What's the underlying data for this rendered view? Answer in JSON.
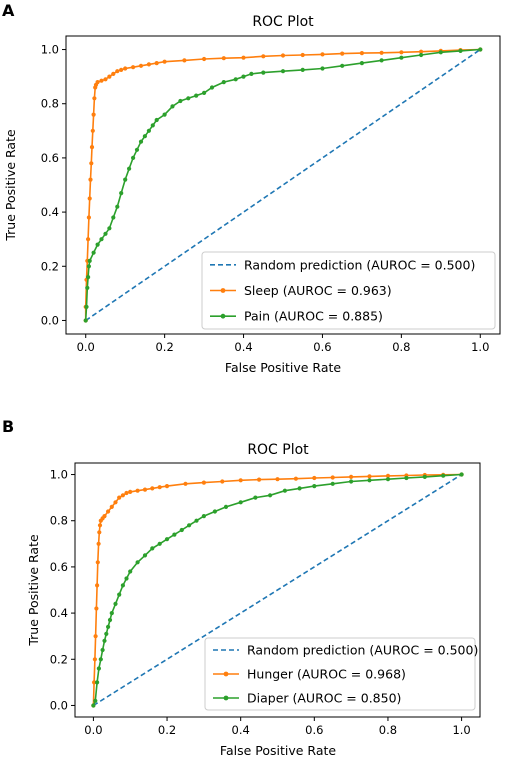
{
  "chart_data": [
    {
      "panel_label": "A",
      "type": "line",
      "title": "ROC Plot",
      "xlabel": "False Positive Rate",
      "ylabel": "True Positive Rate",
      "xlim": [
        -0.05,
        1.05
      ],
      "ylim": [
        -0.05,
        1.05
      ],
      "xticks": [
        "0.0",
        "0.2",
        "0.4",
        "0.6",
        "0.8",
        "1.0"
      ],
      "yticks": [
        "0.0",
        "0.2",
        "0.4",
        "0.6",
        "0.8",
        "1.0"
      ],
      "grid": false,
      "legend_position": "lower-right",
      "series": [
        {
          "name": "Random prediction (AUROC = 0.500)",
          "color": "#1f77b4",
          "style": "dashed",
          "markers": false,
          "points": [
            [
              0,
              0
            ],
            [
              1,
              1
            ]
          ]
        },
        {
          "name": "Sleep (AUROC = 0.963)",
          "color": "#ff7f0e",
          "style": "solid",
          "markers": true,
          "points": [
            [
              0,
              0
            ],
            [
              0,
              0.05
            ],
            [
              0.002,
              0.15
            ],
            [
              0.004,
              0.22
            ],
            [
              0.006,
              0.3
            ],
            [
              0.008,
              0.38
            ],
            [
              0.01,
              0.45
            ],
            [
              0.012,
              0.52
            ],
            [
              0.014,
              0.58
            ],
            [
              0.016,
              0.64
            ],
            [
              0.018,
              0.7
            ],
            [
              0.02,
              0.76
            ],
            [
              0.022,
              0.82
            ],
            [
              0.024,
              0.86
            ],
            [
              0.026,
              0.87
            ],
            [
              0.03,
              0.88
            ],
            [
              0.04,
              0.885
            ],
            [
              0.05,
              0.89
            ],
            [
              0.06,
              0.9
            ],
            [
              0.07,
              0.91
            ],
            [
              0.08,
              0.92
            ],
            [
              0.09,
              0.925
            ],
            [
              0.1,
              0.93
            ],
            [
              0.12,
              0.935
            ],
            [
              0.14,
              0.94
            ],
            [
              0.16,
              0.945
            ],
            [
              0.18,
              0.95
            ],
            [
              0.2,
              0.955
            ],
            [
              0.25,
              0.96
            ],
            [
              0.3,
              0.965
            ],
            [
              0.35,
              0.968
            ],
            [
              0.4,
              0.97
            ],
            [
              0.45,
              0.975
            ],
            [
              0.5,
              0.978
            ],
            [
              0.55,
              0.98
            ],
            [
              0.6,
              0.982
            ],
            [
              0.65,
              0.985
            ],
            [
              0.7,
              0.987
            ],
            [
              0.75,
              0.988
            ],
            [
              0.8,
              0.99
            ],
            [
              0.85,
              0.992
            ],
            [
              0.9,
              0.995
            ],
            [
              0.95,
              0.998
            ],
            [
              1.0,
              1.0
            ]
          ]
        },
        {
          "name": "Pain (AUROC = 0.885)",
          "color": "#2ca02c",
          "style": "solid",
          "markers": true,
          "points": [
            [
              0,
              0
            ],
            [
              0.002,
              0.05
            ],
            [
              0.004,
              0.12
            ],
            [
              0.006,
              0.16
            ],
            [
              0.008,
              0.2
            ],
            [
              0.01,
              0.22
            ],
            [
              0.02,
              0.25
            ],
            [
              0.03,
              0.28
            ],
            [
              0.04,
              0.3
            ],
            [
              0.05,
              0.32
            ],
            [
              0.06,
              0.34
            ],
            [
              0.07,
              0.38
            ],
            [
              0.08,
              0.42
            ],
            [
              0.09,
              0.47
            ],
            [
              0.1,
              0.52
            ],
            [
              0.11,
              0.56
            ],
            [
              0.12,
              0.6
            ],
            [
              0.13,
              0.63
            ],
            [
              0.14,
              0.66
            ],
            [
              0.15,
              0.68
            ],
            [
              0.16,
              0.7
            ],
            [
              0.17,
              0.72
            ],
            [
              0.18,
              0.74
            ],
            [
              0.2,
              0.76
            ],
            [
              0.22,
              0.79
            ],
            [
              0.24,
              0.81
            ],
            [
              0.26,
              0.82
            ],
            [
              0.28,
              0.83
            ],
            [
              0.3,
              0.84
            ],
            [
              0.32,
              0.86
            ],
            [
              0.35,
              0.88
            ],
            [
              0.38,
              0.89
            ],
            [
              0.4,
              0.9
            ],
            [
              0.42,
              0.91
            ],
            [
              0.45,
              0.915
            ],
            [
              0.5,
              0.92
            ],
            [
              0.55,
              0.925
            ],
            [
              0.6,
              0.93
            ],
            [
              0.65,
              0.94
            ],
            [
              0.7,
              0.95
            ],
            [
              0.75,
              0.96
            ],
            [
              0.8,
              0.97
            ],
            [
              0.85,
              0.98
            ],
            [
              0.9,
              0.99
            ],
            [
              0.95,
              0.995
            ],
            [
              1.0,
              1.0
            ]
          ]
        }
      ]
    },
    {
      "panel_label": "B",
      "type": "line",
      "title": "ROC Plot",
      "xlabel": "False Positive Rate",
      "ylabel": "True Positive Rate",
      "xlim": [
        -0.05,
        1.05
      ],
      "ylim": [
        -0.05,
        1.05
      ],
      "xticks": [
        "0.0",
        "0.2",
        "0.4",
        "0.6",
        "0.8",
        "1.0"
      ],
      "yticks": [
        "0.0",
        "0.2",
        "0.4",
        "0.6",
        "0.8",
        "1.0"
      ],
      "grid": false,
      "legend_position": "lower-right",
      "series": [
        {
          "name": "Random prediction (AUROC = 0.500)",
          "color": "#1f77b4",
          "style": "dashed",
          "markers": false,
          "points": [
            [
              0,
              0
            ],
            [
              1,
              1
            ]
          ]
        },
        {
          "name": "Hunger (AUROC = 0.968)",
          "color": "#ff7f0e",
          "style": "solid",
          "markers": true,
          "points": [
            [
              0,
              0
            ],
            [
              0.002,
              0.1
            ],
            [
              0.004,
              0.2
            ],
            [
              0.006,
              0.3
            ],
            [
              0.008,
              0.42
            ],
            [
              0.01,
              0.52
            ],
            [
              0.012,
              0.62
            ],
            [
              0.014,
              0.7
            ],
            [
              0.016,
              0.75
            ],
            [
              0.018,
              0.78
            ],
            [
              0.02,
              0.8
            ],
            [
              0.025,
              0.81
            ],
            [
              0.03,
              0.82
            ],
            [
              0.04,
              0.84
            ],
            [
              0.05,
              0.86
            ],
            [
              0.06,
              0.88
            ],
            [
              0.07,
              0.9
            ],
            [
              0.08,
              0.91
            ],
            [
              0.09,
              0.92
            ],
            [
              0.1,
              0.925
            ],
            [
              0.12,
              0.93
            ],
            [
              0.14,
              0.935
            ],
            [
              0.16,
              0.94
            ],
            [
              0.18,
              0.945
            ],
            [
              0.2,
              0.95
            ],
            [
              0.25,
              0.96
            ],
            [
              0.3,
              0.965
            ],
            [
              0.35,
              0.97
            ],
            [
              0.4,
              0.975
            ],
            [
              0.45,
              0.978
            ],
            [
              0.5,
              0.98
            ],
            [
              0.55,
              0.982
            ],
            [
              0.6,
              0.985
            ],
            [
              0.65,
              0.987
            ],
            [
              0.7,
              0.99
            ],
            [
              0.75,
              0.992
            ],
            [
              0.8,
              0.994
            ],
            [
              0.85,
              0.996
            ],
            [
              0.9,
              0.998
            ],
            [
              0.95,
              0.999
            ],
            [
              1.0,
              1.0
            ]
          ]
        },
        {
          "name": "Diaper (AUROC = 0.850)",
          "color": "#2ca02c",
          "style": "solid",
          "markers": true,
          "points": [
            [
              0,
              0
            ],
            [
              0.005,
              0.02
            ],
            [
              0.01,
              0.1
            ],
            [
              0.015,
              0.16
            ],
            [
              0.02,
              0.2
            ],
            [
              0.025,
              0.24
            ],
            [
              0.03,
              0.28
            ],
            [
              0.035,
              0.31
            ],
            [
              0.04,
              0.34
            ],
            [
              0.045,
              0.37
            ],
            [
              0.05,
              0.4
            ],
            [
              0.06,
              0.44
            ],
            [
              0.07,
              0.48
            ],
            [
              0.08,
              0.52
            ],
            [
              0.09,
              0.55
            ],
            [
              0.1,
              0.58
            ],
            [
              0.12,
              0.62
            ],
            [
              0.14,
              0.65
            ],
            [
              0.16,
              0.68
            ],
            [
              0.18,
              0.7
            ],
            [
              0.2,
              0.72
            ],
            [
              0.22,
              0.74
            ],
            [
              0.24,
              0.76
            ],
            [
              0.26,
              0.78
            ],
            [
              0.28,
              0.8
            ],
            [
              0.3,
              0.82
            ],
            [
              0.33,
              0.84
            ],
            [
              0.36,
              0.86
            ],
            [
              0.4,
              0.88
            ],
            [
              0.44,
              0.9
            ],
            [
              0.48,
              0.91
            ],
            [
              0.52,
              0.93
            ],
            [
              0.56,
              0.94
            ],
            [
              0.6,
              0.95
            ],
            [
              0.65,
              0.96
            ],
            [
              0.7,
              0.97
            ],
            [
              0.75,
              0.975
            ],
            [
              0.8,
              0.98
            ],
            [
              0.85,
              0.985
            ],
            [
              0.9,
              0.99
            ],
            [
              0.95,
              0.995
            ],
            [
              1.0,
              1.0
            ]
          ]
        }
      ]
    }
  ]
}
